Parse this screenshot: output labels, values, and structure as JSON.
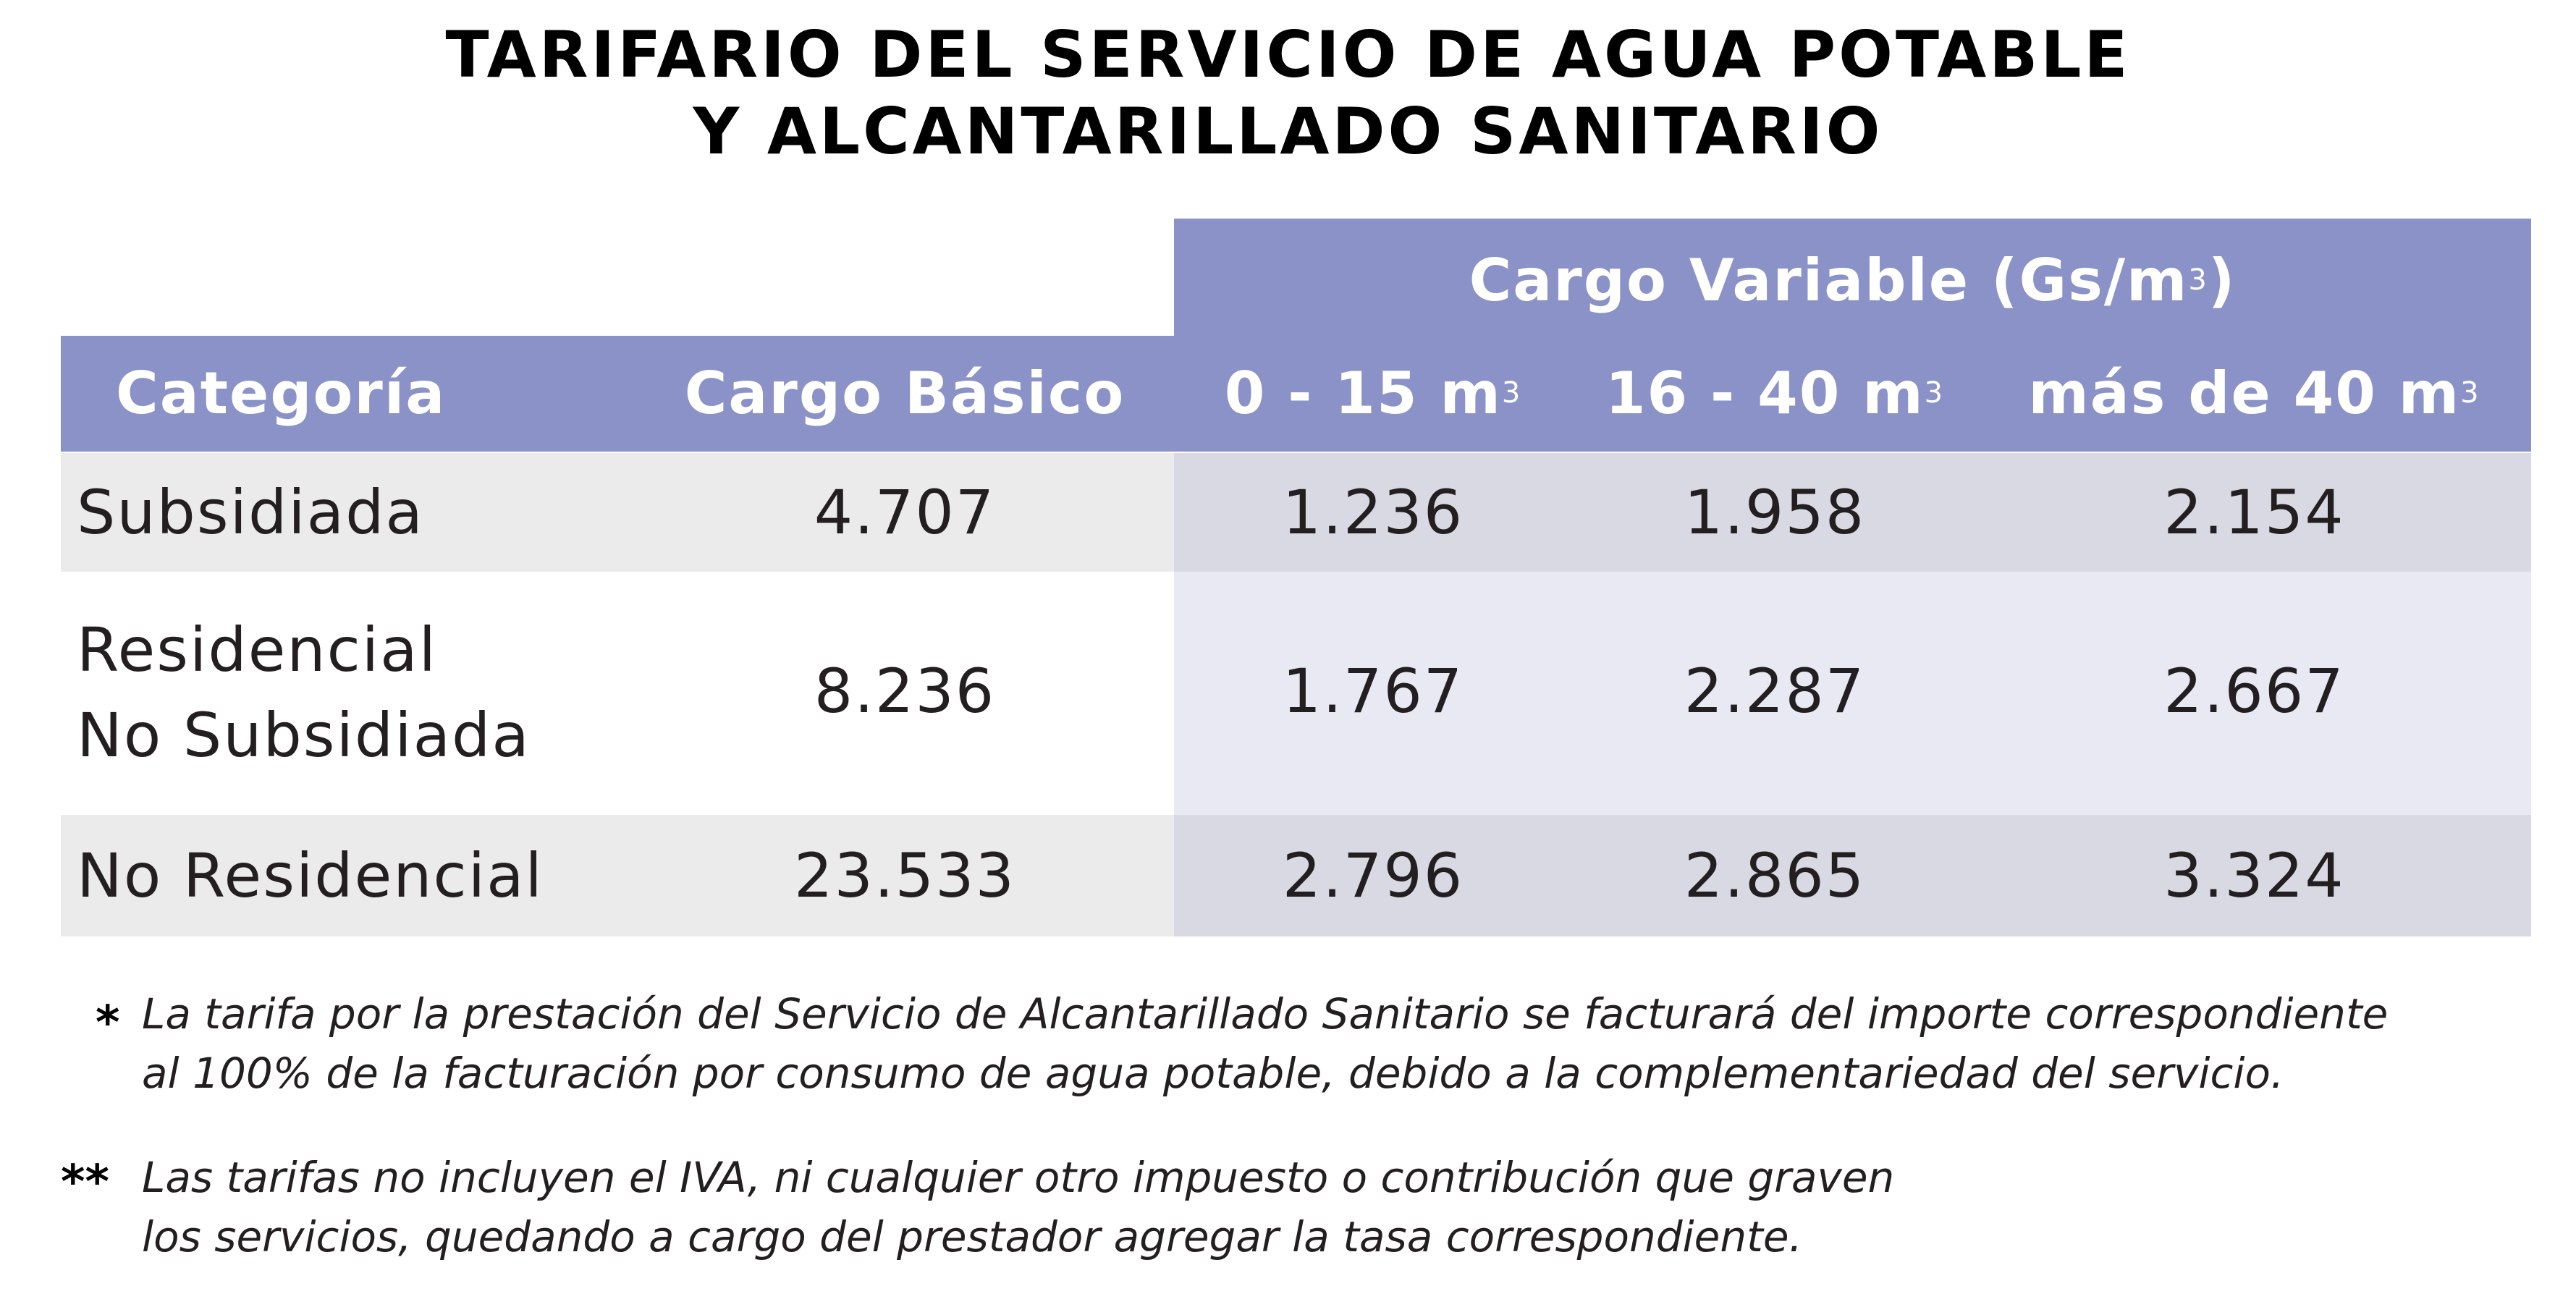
{
  "title": {
    "line1": "TARIFARIO DEL SERVICIO DE AGUA POTABLE",
    "line2": "Y ALCANTARILLADO SANITARIO"
  },
  "table": {
    "group_header": "Cargo Variable (Gs/m",
    "group_header_sup": "3",
    "group_header_close": ")",
    "columns": {
      "category": "Categoría",
      "basic": "Cargo Básico",
      "range1": "0 - 15 m",
      "range2": "16 - 40 m",
      "range3": "más de 40 m",
      "unit_sup": "3"
    },
    "rows": [
      {
        "category": "Subsidiada",
        "basic": "4.707",
        "range1": "1.236",
        "range2": "1.958",
        "range3": "2.154"
      },
      {
        "category_line1": "Residencial",
        "category_line2": "No Subsidiada",
        "basic": "8.236",
        "range1": "1.767",
        "range2": "2.287",
        "range3": "2.667"
      },
      {
        "category": "No Residencial",
        "basic": "23.533",
        "range1": "2.796",
        "range2": "2.865",
        "range3": "3.324"
      }
    ]
  },
  "notes": [
    {
      "mark": "*",
      "line1": "La tarifa por la prestación del Servicio de Alcantarillado Sanitario se facturará del importe correspondiente",
      "line2": "al 100% de la facturación por consumo de agua potable, debido a la complementariedad del servicio."
    },
    {
      "mark": "**",
      "line1": "Las tarifas no incluyen el IVA, ni cualquier otro impuesto o contribución que graven",
      "line2": "los servicios, quedando a cargo del prestador agregar la tasa correspondiente."
    }
  ],
  "colors": {
    "header": "#8a92c7",
    "row_gray": "#ebebeb",
    "row_lavender_dark": "#d9d9e3",
    "row_lavender_light": "#e9e9f4"
  }
}
